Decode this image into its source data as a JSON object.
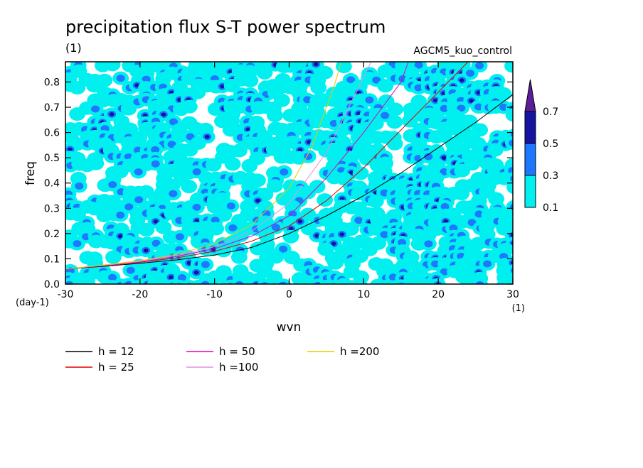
{
  "chart_data": {
    "type": "heatmap",
    "title": "precipitation flux S-T power spectrum",
    "subtitle_left": "(1)",
    "subtitle_right": "AGCM5_kuo_control",
    "xlabel": "wvn",
    "ylabel": "freq",
    "x_unit": "(1)",
    "y_unit": "(day-1)",
    "xlim": [
      -30,
      30
    ],
    "ylim": [
      0,
      0.88
    ],
    "x_ticks": [
      -30,
      -20,
      -10,
      0,
      10,
      20,
      30
    ],
    "y_ticks": [
      0.0,
      0.1,
      0.2,
      0.3,
      0.4,
      0.5,
      0.6,
      0.7,
      0.8
    ],
    "x_tick_labels": [
      "-30",
      "-20",
      "-10",
      "0",
      "10",
      "20",
      "30"
    ],
    "y_tick_labels": [
      "0.0",
      "0.1",
      "0.2",
      "0.3",
      "0.4",
      "0.5",
      "0.6",
      "0.7",
      "0.8"
    ],
    "colorbar": {
      "levels": [
        0.1,
        0.3,
        0.5,
        0.7
      ],
      "labels": [
        "0.1",
        "0.3",
        "0.5",
        "0.7"
      ],
      "colors": [
        "#00f0f0",
        "#1e78ff",
        "#1414a0",
        "#5a1e96"
      ]
    },
    "blob_seed": 7,
    "series": [
      {
        "name": "h = 12",
        "color": "#000000",
        "x": [
          -30,
          -25,
          -20,
          -15,
          -10,
          -5,
          0,
          5,
          10,
          15,
          20,
          25,
          30
        ],
        "y": [
          0.06,
          0.07,
          0.082,
          0.096,
          0.115,
          0.145,
          0.2,
          0.27,
          0.35,
          0.44,
          0.54,
          0.64,
          0.75
        ]
      },
      {
        "name": "h = 25",
        "color": "#e00000",
        "x": [
          -30,
          -25,
          -20,
          -15,
          -10,
          -5,
          0,
          5,
          10,
          15,
          20,
          24
        ],
        "y": [
          0.06,
          0.072,
          0.086,
          0.104,
          0.13,
          0.17,
          0.23,
          0.33,
          0.46,
          0.61,
          0.76,
          0.88
        ]
      },
      {
        "name": "h = 50",
        "color": "#e000c0",
        "x": [
          -30,
          -25,
          -20,
          -15,
          -10,
          -5,
          0,
          5,
          10,
          15,
          16
        ],
        "y": [
          0.06,
          0.073,
          0.088,
          0.11,
          0.14,
          0.19,
          0.27,
          0.42,
          0.6,
          0.8,
          0.88
        ]
      },
      {
        "name": "h =100",
        "color": "#e090e0",
        "x": [
          -30,
          -25,
          -20,
          -15,
          -10,
          -5,
          0,
          5,
          10,
          11
        ],
        "y": [
          0.06,
          0.074,
          0.09,
          0.113,
          0.148,
          0.21,
          0.32,
          0.52,
          0.82,
          0.88
        ]
      },
      {
        "name": "h =200",
        "color": "#e8c800",
        "x": [
          -30,
          -25,
          -20,
          -15,
          -10,
          -5,
          0,
          3,
          6,
          7
        ],
        "y": [
          0.06,
          0.075,
          0.092,
          0.118,
          0.16,
          0.235,
          0.38,
          0.54,
          0.78,
          0.88
        ]
      }
    ]
  }
}
